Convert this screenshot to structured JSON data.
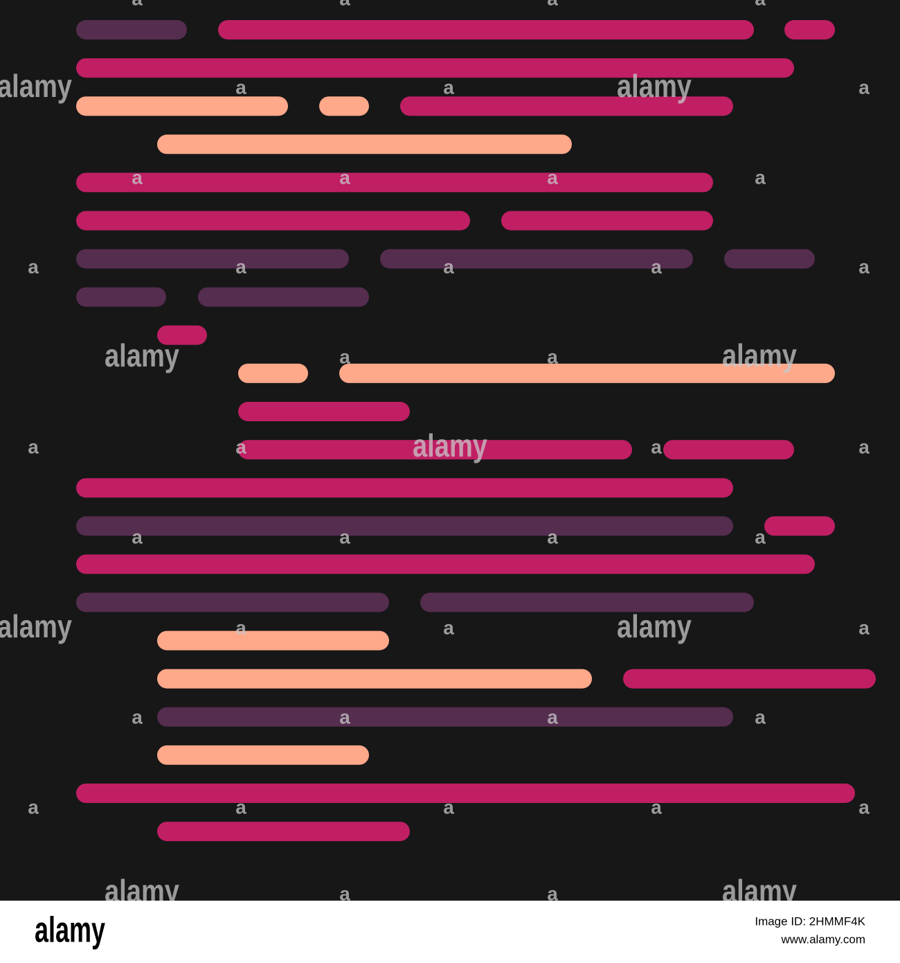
{
  "watermark": {
    "logo": "alamy",
    "mark": "a"
  },
  "footer": {
    "logo": "alamy",
    "image_id": "Image ID: 2HMMF4K",
    "url": "www.alamy.com"
  }
}
